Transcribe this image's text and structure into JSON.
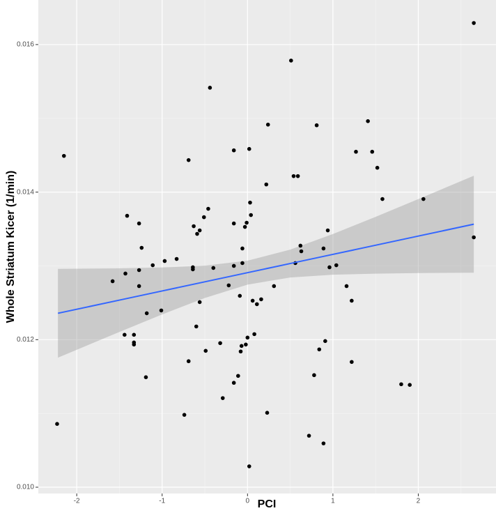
{
  "chart_data": {
    "type": "scatter",
    "x_label": "PCI",
    "y_label": "Whole Striatum Kicer (1/min)",
    "color": "#000000",
    "grid": true,
    "xlim": [
      -2.45,
      2.91
    ],
    "ylim": [
      0.009915,
      0.016604
    ],
    "xticks": [
      -2,
      -1,
      0,
      1,
      2
    ],
    "yticks": [
      {
        "value": 0.01,
        "label": "0.010"
      },
      {
        "value": 0.012,
        "label": "0.012"
      },
      {
        "value": 0.014,
        "label": "0.014"
      },
      {
        "value": 0.016,
        "label": "0.016"
      }
    ],
    "x": [
      2.65,
      -2.15,
      -2.23,
      0.51,
      -0.44,
      0.24,
      0.81,
      1.41,
      1.27,
      1.46,
      1.52,
      1.58,
      2.06,
      -0.16,
      0.02,
      -0.69,
      0.54,
      0.59,
      0.22,
      -1.41,
      -1.27,
      -0.46,
      -0.51,
      -0.63,
      -0.56,
      -0.59,
      -0.16,
      0.03,
      0.04,
      -0.01,
      -0.03,
      0.94,
      2.65,
      -1.24,
      -0.06,
      0.62,
      0.63,
      0.89,
      -0.97,
      -0.83,
      -1.11,
      -1.27,
      -0.64,
      -0.64,
      -0.4,
      -0.16,
      -0.06,
      0.56,
      1.04,
      0.96,
      -1.43,
      -1.58,
      -1.27,
      -0.22,
      0.31,
      1.16,
      -0.09,
      0.16,
      0.06,
      0.11,
      1.22,
      -0.56,
      -1.01,
      -1.18,
      -0.6,
      -1.44,
      -1.33,
      -1.33,
      -1.33,
      -0.32,
      0.0,
      0.08,
      -0.02,
      -0.07,
      -0.08,
      -0.49,
      0.91,
      0.84,
      -0.69,
      1.22,
      -0.11,
      -0.16,
      0.78,
      -1.19,
      1.8,
      1.9,
      -0.29,
      -0.74,
      0.23,
      0.72,
      0.89,
      0.02
    ],
    "y": [
      0.016292,
      0.014491,
      0.010858,
      0.015783,
      0.015415,
      0.014915,
      0.014906,
      0.014962,
      0.014547,
      0.014547,
      0.01433,
      0.013906,
      0.013906,
      0.014566,
      0.014585,
      0.014434,
      0.014217,
      0.014217,
      0.014104,
      0.013679,
      0.013575,
      0.013774,
      0.01366,
      0.013538,
      0.013481,
      0.013434,
      0.013575,
      0.013858,
      0.013689,
      0.013585,
      0.013528,
      0.013481,
      0.013387,
      0.013245,
      0.013236,
      0.013274,
      0.013198,
      0.013236,
      0.013066,
      0.013094,
      0.013009,
      0.012943,
      0.012981,
      0.012953,
      0.012972,
      0.013,
      0.013038,
      0.013038,
      0.013009,
      0.012981,
      0.012896,
      0.012792,
      0.012726,
      0.012736,
      0.012726,
      0.012726,
      0.012594,
      0.012547,
      0.012528,
      0.012481,
      0.012528,
      0.012509,
      0.012396,
      0.012358,
      0.012179,
      0.012066,
      0.012066,
      0.011962,
      0.011934,
      0.011953,
      0.012028,
      0.012075,
      0.011934,
      0.011915,
      0.01184,
      0.011849,
      0.011981,
      0.011868,
      0.011708,
      0.011698,
      0.011509,
      0.011415,
      0.011519,
      0.011491,
      0.011396,
      0.011387,
      0.011208,
      0.010981,
      0.011009,
      0.010698,
      0.010594,
      0.010283
    ],
    "fit": {
      "color": "#3366ff",
      "x": [
        -2.22,
        -1.5,
        -1,
        -0.5,
        0,
        0.5,
        1,
        1.5,
        2,
        2.65
      ],
      "y": [
        0.012358,
        0.012536,
        0.01266,
        0.012784,
        0.012908,
        0.013032,
        0.013156,
        0.01328,
        0.013404,
        0.013565
      ],
      "lower": [
        0.011756,
        0.012105,
        0.012342,
        0.012565,
        0.012746,
        0.012843,
        0.01288,
        0.012895,
        0.012903,
        0.012908
      ],
      "upper": [
        0.01296,
        0.012967,
        0.012978,
        0.013003,
        0.01307,
        0.013221,
        0.013432,
        0.013665,
        0.013905,
        0.014222
      ]
    }
  }
}
